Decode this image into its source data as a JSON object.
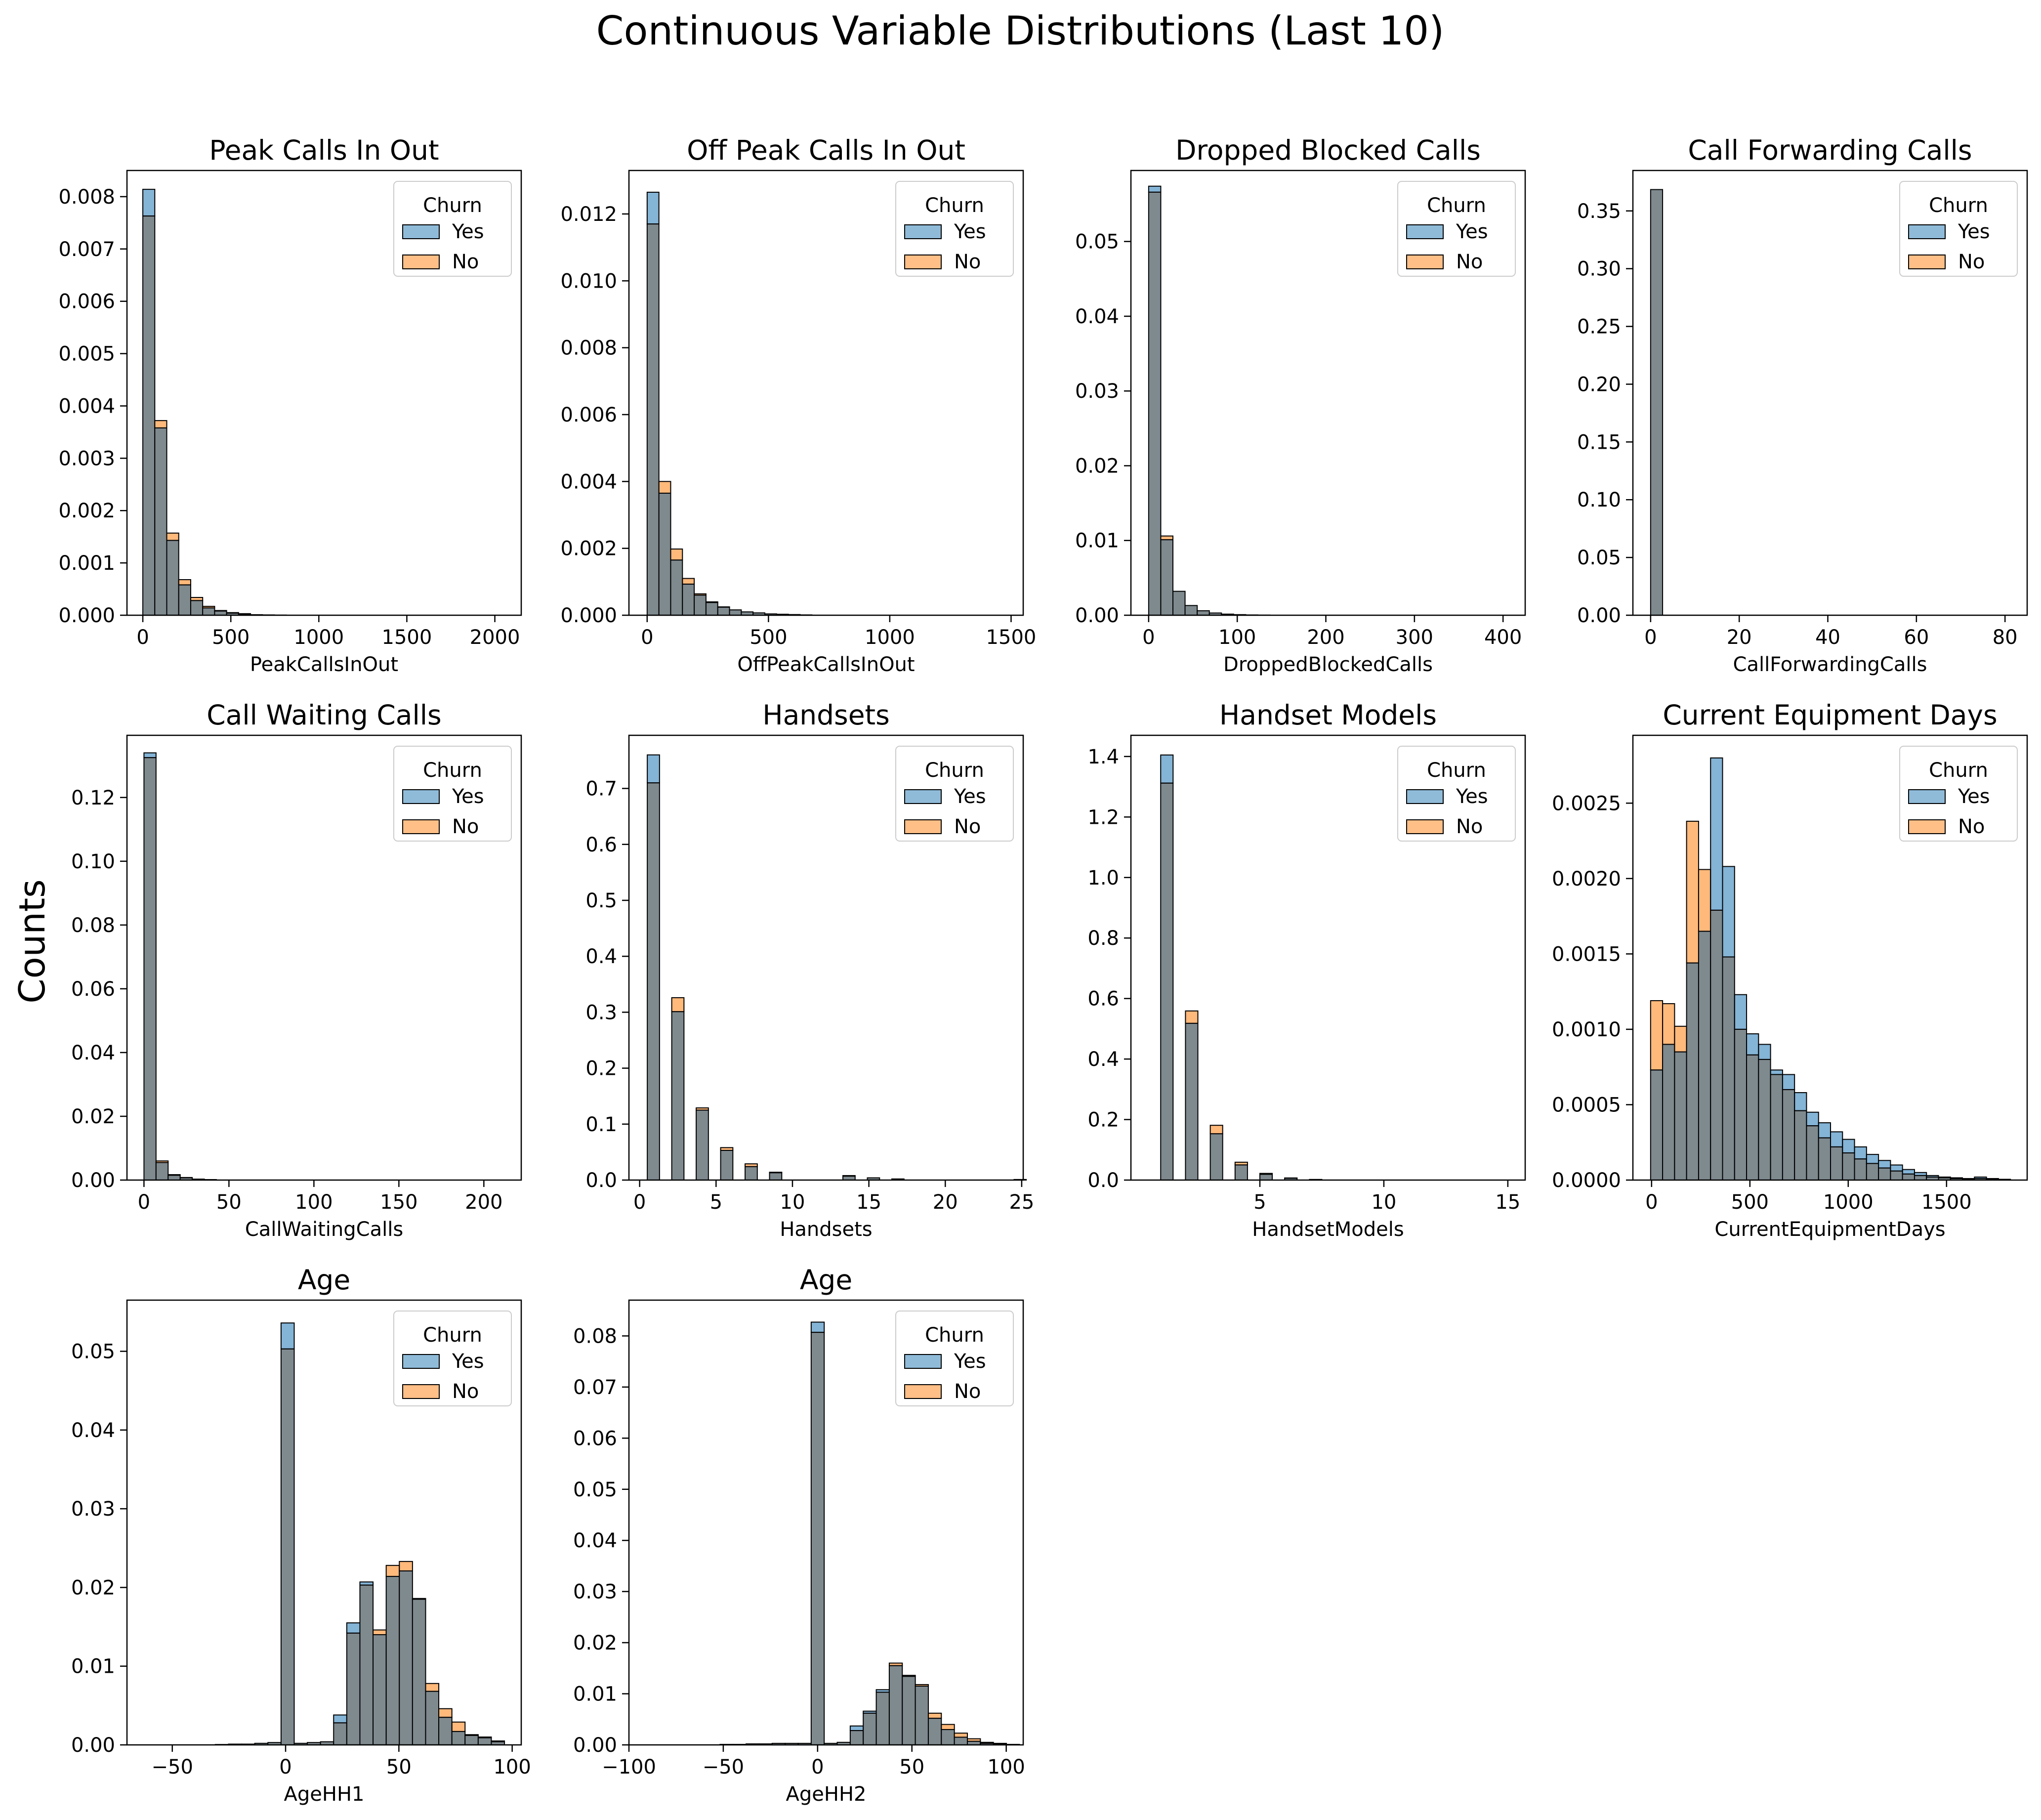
{
  "figure": {
    "title": "Continuous Variable Distributions (Last 10)",
    "ylabel": "Counts"
  },
  "colors": {
    "yes": "#1f77b4",
    "no": "#ff7f0e",
    "overlap": "#7f8a8f"
  },
  "chart_data": [
    {
      "type": "histogram",
      "title": "Peak Calls In Out",
      "xlabel": "PeakCallsInOut",
      "bin_start": 0,
      "bin_width": 68,
      "xlim": [
        -90,
        2150
      ],
      "ylim": [
        0,
        0.0085
      ],
      "xticks": [
        0,
        500,
        1000,
        1500,
        2000
      ],
      "yticks": [
        0,
        0.001,
        0.002,
        0.003,
        0.004,
        0.005,
        0.006,
        0.007,
        0.008
      ],
      "yticklabels": [
        "0.000",
        "0.001",
        "0.002",
        "0.003",
        "0.004",
        "0.005",
        "0.006",
        "0.007",
        "0.008"
      ],
      "legend": {
        "title": "Churn",
        "items": [
          "Yes",
          "No"
        ],
        "loc": "upper right"
      },
      "series": [
        {
          "name": "Yes",
          "values": [
            0.00814,
            0.00358,
            0.00143,
            0.00058,
            0.00028,
            0.00014,
            8e-05,
            4e-05,
            2e-05,
            1e-05,
            5e-06,
            3e-06
          ]
        },
        {
          "name": "No",
          "values": [
            0.00763,
            0.00372,
            0.00157,
            0.00068,
            0.00034,
            0.00017,
            9e-05,
            5e-05,
            3e-05,
            1e-05,
            6e-06,
            3e-06
          ]
        }
      ]
    },
    {
      "type": "histogram",
      "title": "Off Peak Calls In Out",
      "xlabel": "OffPeakCallsInOut",
      "bin_start": 0,
      "bin_width": 48.5,
      "xlim": [
        -75,
        1550
      ],
      "ylim": [
        0,
        0.0133
      ],
      "xticks": [
        0,
        500,
        1000,
        1500
      ],
      "yticks": [
        0,
        0.002,
        0.004,
        0.006,
        0.008,
        0.01,
        0.012
      ],
      "yticklabels": [
        "0.000",
        "0.002",
        "0.004",
        "0.006",
        "0.008",
        "0.010",
        "0.012"
      ],
      "legend": {
        "title": "Churn",
        "items": [
          "Yes",
          "No"
        ],
        "loc": "upper right"
      },
      "series": [
        {
          "name": "Yes",
          "values": [
            0.01265,
            0.00365,
            0.00165,
            0.00093,
            0.0006,
            0.00038,
            0.00024,
            0.00016,
            0.0001,
            7e-05,
            4e-05,
            3e-05,
            2e-05,
            1e-05
          ]
        },
        {
          "name": "No",
          "values": [
            0.0117,
            0.004,
            0.00198,
            0.0011,
            0.00064,
            0.0004,
            0.00025,
            0.00016,
            0.0001,
            7e-05,
            4e-05,
            3e-05,
            2e-05,
            1e-05
          ]
        }
      ]
    },
    {
      "type": "histogram",
      "title": "Dropped Blocked Calls",
      "xlabel": "DroppedBlockedCalls",
      "bin_start": 0,
      "bin_width": 13.7,
      "xlim": [
        -20,
        425
      ],
      "ylim": [
        0,
        0.0595
      ],
      "xticks": [
        0,
        100,
        200,
        300,
        400
      ],
      "yticks": [
        0,
        0.01,
        0.02,
        0.03,
        0.04,
        0.05
      ],
      "yticklabels": [
        "0.00",
        "0.01",
        "0.02",
        "0.03",
        "0.04",
        "0.05"
      ],
      "legend": {
        "title": "Churn",
        "items": [
          "Yes",
          "No"
        ],
        "loc": "upper right"
      },
      "series": [
        {
          "name": "Yes",
          "values": [
            0.0574,
            0.0101,
            0.0032,
            0.0013,
            0.0006,
            0.0003,
            0.00015,
            8e-05,
            4e-05,
            2e-05
          ]
        },
        {
          "name": "No",
          "values": [
            0.0566,
            0.0106,
            0.0032,
            0.0013,
            0.0006,
            0.0003,
            0.00015,
            8e-05,
            4e-05,
            2e-05
          ]
        }
      ]
    },
    {
      "type": "histogram",
      "title": "Call Forwarding Calls",
      "xlabel": "CallForwardingCalls",
      "bin_start": 0,
      "bin_width": 2.7,
      "xlim": [
        -4,
        85
      ],
      "ylim": [
        0,
        0.385
      ],
      "xticks": [
        0,
        20,
        40,
        60,
        80
      ],
      "yticks": [
        0,
        0.05,
        0.1,
        0.15,
        0.2,
        0.25,
        0.3,
        0.35
      ],
      "yticklabels": [
        "0.00",
        "0.05",
        "0.10",
        "0.15",
        "0.20",
        "0.25",
        "0.30",
        "0.35"
      ],
      "legend": {
        "title": "Churn",
        "items": [
          "Yes",
          "No"
        ],
        "loc": "upper right"
      },
      "series": [
        {
          "name": "Yes",
          "values": [
            0.3685
          ]
        },
        {
          "name": "No",
          "values": [
            0.3685
          ]
        }
      ]
    },
    {
      "type": "histogram",
      "title": "Call Waiting Calls",
      "xlabel": "CallWaitingCalls",
      "bin_start": 0,
      "bin_width": 7.1,
      "xlim": [
        -10,
        222
      ],
      "ylim": [
        0,
        0.1395
      ],
      "xticks": [
        0,
        50,
        100,
        150,
        200
      ],
      "yticks": [
        0,
        0.02,
        0.04,
        0.06,
        0.08,
        0.1,
        0.12
      ],
      "yticklabels": [
        "0.00",
        "0.02",
        "0.04",
        "0.06",
        "0.08",
        "0.10",
        "0.12"
      ],
      "legend": {
        "title": "Churn",
        "items": [
          "Yes",
          "No"
        ],
        "loc": "upper right"
      },
      "series": [
        {
          "name": "Yes",
          "values": [
            0.134,
            0.0055,
            0.0015,
            0.0007,
            0.0003,
            0.00015
          ]
        },
        {
          "name": "No",
          "values": [
            0.1325,
            0.006,
            0.0017,
            0.0008,
            0.0003,
            0.00015
          ]
        }
      ]
    },
    {
      "type": "histogram",
      "title": "Handsets",
      "xlabel": "Handsets",
      "bin_start": 0.5,
      "bin_width": 0.8,
      "xlim": [
        -0.7,
        25.1
      ],
      "ylim": [
        0,
        0.795
      ],
      "xticks": [
        0,
        5,
        10,
        15,
        20,
        25
      ],
      "yticks": [
        0,
        0.1,
        0.2,
        0.3,
        0.4,
        0.5,
        0.6,
        0.7
      ],
      "yticklabels": [
        "0.0",
        "0.1",
        "0.2",
        "0.3",
        "0.4",
        "0.5",
        "0.6",
        "0.7"
      ],
      "legend": {
        "title": "Churn",
        "items": [
          "Yes",
          "No"
        ],
        "loc": "upper right"
      },
      "series": [
        {
          "name": "Yes",
          "values": [
            0.76,
            0,
            0.301,
            0,
            0.125,
            0,
            0.053,
            0,
            0.024,
            0,
            0.013,
            0,
            0,
            0,
            0,
            0,
            0.007,
            0,
            0.004,
            0,
            0.002,
            0,
            0,
            0,
            0,
            0,
            0,
            0,
            0,
            0,
            0.001
          ]
        },
        {
          "name": "No",
          "values": [
            0.71,
            0,
            0.326,
            0,
            0.129,
            0,
            0.058,
            0,
            0.029,
            0,
            0.014,
            0,
            0,
            0,
            0,
            0,
            0.008,
            0,
            0.004,
            0,
            0.002,
            0,
            0,
            0,
            0,
            0,
            0,
            0,
            0,
            0,
            0.001
          ]
        }
      ]
    },
    {
      "type": "histogram",
      "title": "Handset Models",
      "xlabel": "HandsetModels",
      "bin_start": 0.5,
      "bin_width": 0.5,
      "xlim": [
        -0.2,
        15.7
      ],
      "ylim": [
        0,
        1.47
      ],
      "xticks": [
        5,
        10,
        15
      ],
      "yticks": [
        0,
        0.2,
        0.4,
        0.6,
        0.8,
        1.0,
        1.2,
        1.4
      ],
      "yticklabels": [
        "0.0",
        "0.2",
        "0.4",
        "0.6",
        "0.8",
        "1.0",
        "1.2",
        "1.4"
      ],
      "legend": {
        "title": "Churn",
        "items": [
          "Yes",
          "No"
        ],
        "loc": "upper right"
      },
      "series": [
        {
          "name": "Yes",
          "values": [
            0,
            1.405,
            0,
            0.518,
            0,
            0.153,
            0,
            0.05,
            0,
            0.019,
            0,
            0.006,
            0,
            0.002
          ]
        },
        {
          "name": "No",
          "values": [
            0,
            1.312,
            0,
            0.559,
            0,
            0.181,
            0,
            0.059,
            0,
            0.022,
            0,
            0.007,
            0,
            0.002
          ]
        }
      ]
    },
    {
      "type": "histogram",
      "title": "Current Equipment Days",
      "xlabel": "CurrentEquipmentDays",
      "bin_start": -5,
      "bin_width": 61,
      "xlim": [
        -95,
        1910
      ],
      "ylim": [
        0,
        0.00295
      ],
      "xticks": [
        0,
        500,
        1000,
        1500
      ],
      "yticks": [
        0,
        0.0005,
        0.001,
        0.0015,
        0.002,
        0.0025
      ],
      "yticklabels": [
        "0.0000",
        "0.0005",
        "0.0010",
        "0.0015",
        "0.0020",
        "0.0025"
      ],
      "legend": {
        "title": "Churn",
        "items": [
          "Yes",
          "No"
        ],
        "loc": "upper right"
      },
      "series": [
        {
          "name": "Yes",
          "values": [
            0.00073,
            0.0009,
            0.00085,
            0.00144,
            0.00165,
            0.0028,
            0.00208,
            0.00123,
            0.00097,
            0.0009,
            0.00073,
            0.0007,
            0.00058,
            0.00045,
            0.00038,
            0.00032,
            0.00027,
            0.00022,
            0.00017,
            0.00013,
            0.0001,
            7e-05,
            5e-05,
            3e-05,
            2e-05,
            1.5e-05,
            1e-05,
            2e-05,
            1e-05,
            5e-06
          ]
        },
        {
          "name": "No",
          "values": [
            0.00119,
            0.00117,
            0.00102,
            0.00238,
            0.00206,
            0.00179,
            0.00148,
            0.001,
            0.00083,
            0.0008,
            0.0007,
            0.0006,
            0.00046,
            0.00036,
            0.00028,
            0.00022,
            0.00018,
            0.00014,
            0.00011,
            8e-05,
            6e-05,
            4e-05,
            3e-05,
            2e-05,
            1.5e-05,
            1e-05,
            8e-06,
            1e-05,
            5e-06,
            3e-06
          ]
        }
      ]
    },
    {
      "type": "histogram",
      "title": "Age",
      "xlabel": "AgeHH1",
      "bin_start": -60,
      "bin_width": 5.8,
      "xlim": [
        -70,
        104
      ],
      "ylim": [
        0,
        0.0565
      ],
      "xticks": [
        -50,
        0,
        50,
        100
      ],
      "yticks": [
        0,
        0.01,
        0.02,
        0.03,
        0.04,
        0.05
      ],
      "yticklabels": [
        "0.00",
        "0.01",
        "0.02",
        "0.03",
        "0.04",
        "0.05"
      ],
      "legend": {
        "title": "Churn",
        "items": [
          "Yes",
          "No"
        ],
        "loc": "upper right"
      },
      "series": [
        {
          "name": "Yes",
          "values": [
            0,
            0,
            0,
            0,
            0,
            5e-05,
            0.0001,
            0.0001,
            0.0002,
            0.0003,
            0.0536,
            0.0002,
            0.0003,
            0.0004,
            0.0038,
            0.0155,
            0.0207,
            0.014,
            0.0214,
            0.0221,
            0.0185,
            0.0068,
            0.0035,
            0.0017,
            0.0012,
            0.0009,
            0.0004
          ]
        },
        {
          "name": "No",
          "values": [
            0,
            0,
            0,
            0,
            0,
            5e-05,
            0.0001,
            0.0001,
            0.0002,
            0.0003,
            0.0503,
            0.0002,
            0.0003,
            0.0004,
            0.0028,
            0.0142,
            0.0203,
            0.0146,
            0.0228,
            0.0233,
            0.0186,
            0.0078,
            0.0046,
            0.0029,
            0.0013,
            0.001,
            0.0005
          ]
        }
      ]
    },
    {
      "type": "histogram",
      "title": "Age",
      "xlabel": "AgeHH2",
      "bin_start": -100,
      "bin_width": 6.9,
      "xlim": [
        -100,
        109
      ],
      "ylim": [
        0,
        0.087
      ],
      "xticks": [
        -100,
        -50,
        0,
        50,
        100
      ],
      "yticks": [
        0,
        0.01,
        0.02,
        0.03,
        0.04,
        0.05,
        0.06,
        0.07,
        0.08
      ],
      "yticklabels": [
        "0.00",
        "0.01",
        "0.02",
        "0.03",
        "0.04",
        "0.05",
        "0.06",
        "0.07",
        "0.08"
      ],
      "legend": {
        "title": "Churn",
        "items": [
          "Yes",
          "No"
        ],
        "loc": "upper right"
      },
      "series": [
        {
          "name": "Yes",
          "values": [
            0,
            0,
            0,
            0,
            0,
            0,
            0,
            0.0001,
            0.0001,
            0.0002,
            0.0002,
            0.0003,
            0.0003,
            0.0003,
            0.0827,
            0.0003,
            0.0005,
            0.0037,
            0.0066,
            0.0108,
            0.0155,
            0.0136,
            0.0115,
            0.0052,
            0.003,
            0.0015,
            0.0007,
            0.0003,
            0.0002,
            0.0001
          ]
        },
        {
          "name": "No",
          "values": [
            0,
            0,
            0,
            0,
            0,
            0,
            0,
            0.0001,
            0.0001,
            0.0002,
            0.0002,
            0.0003,
            0.0003,
            0.0003,
            0.0807,
            0.0003,
            0.0005,
            0.0028,
            0.0062,
            0.0103,
            0.016,
            0.0134,
            0.0118,
            0.0062,
            0.004,
            0.0023,
            0.0012,
            0.0005,
            0.0003,
            0.0001
          ]
        }
      ]
    }
  ]
}
